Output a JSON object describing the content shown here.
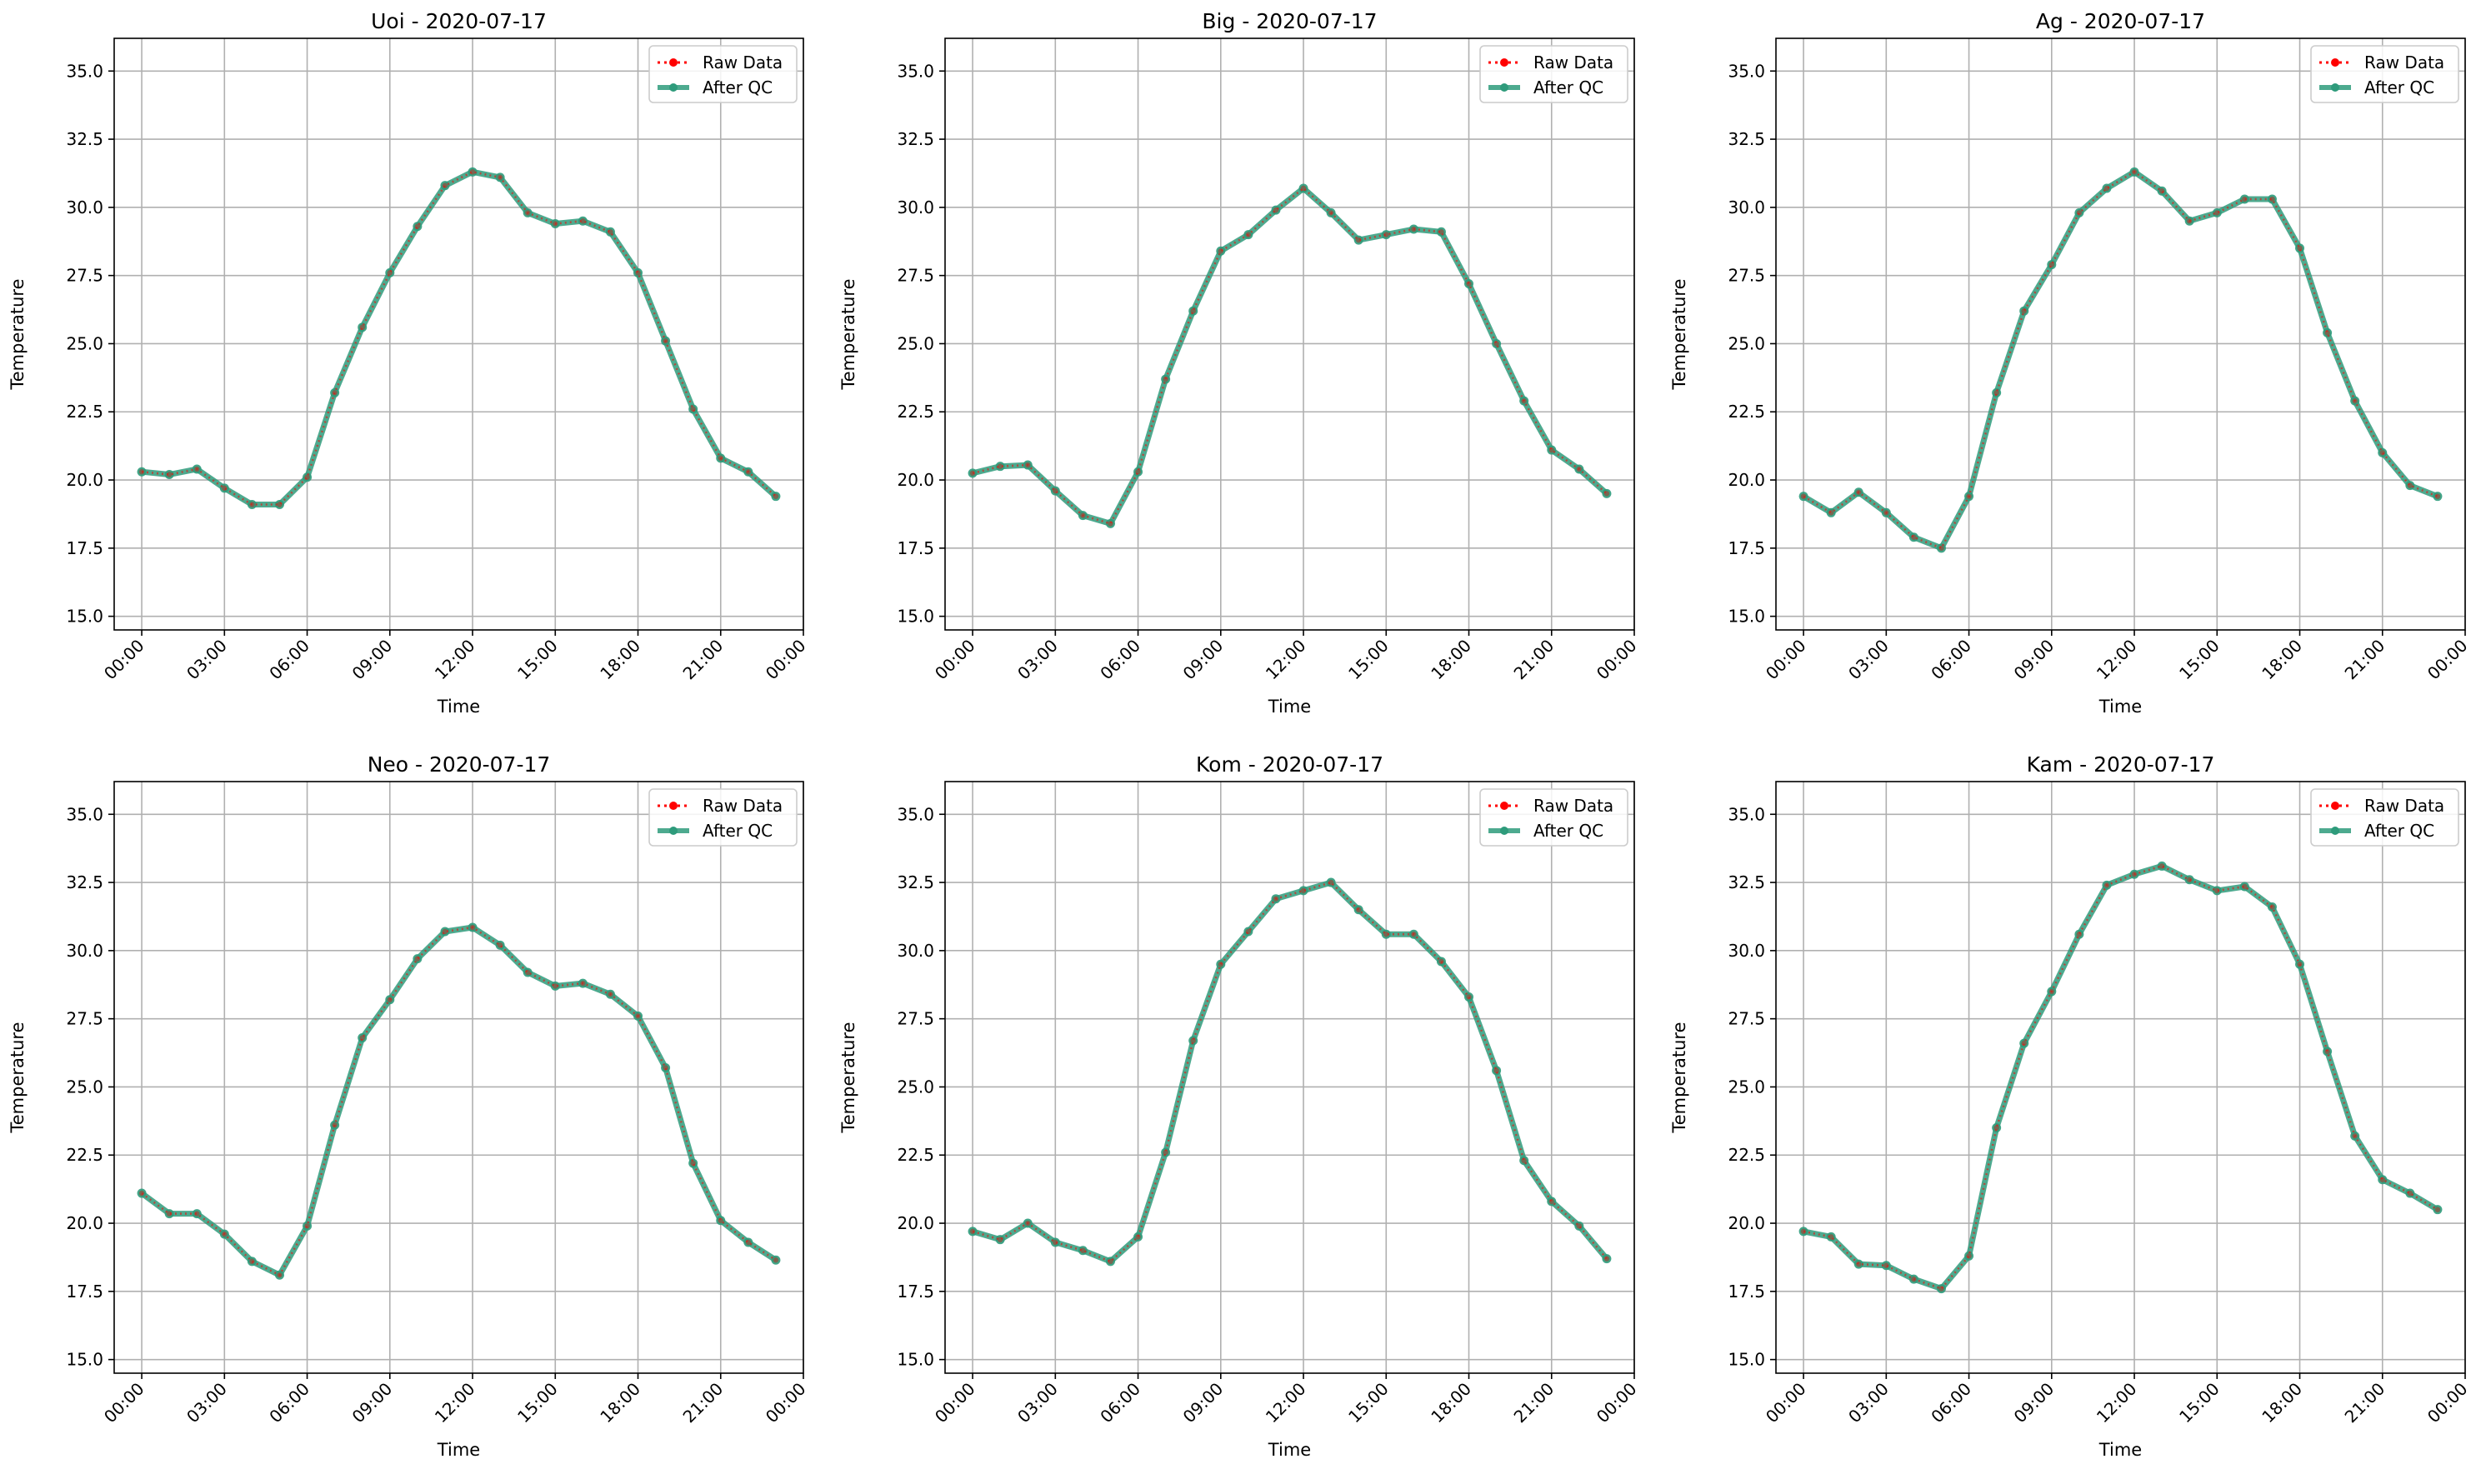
{
  "colors": {
    "raw": "#ff0000",
    "qc": "#2e9b7b",
    "grid": "#b0b0b0",
    "axis": "#000000"
  },
  "chart_data": [
    {
      "type": "line",
      "title": "Uoi - 2020-07-17",
      "xlabel": "Time",
      "ylabel": "Temperature",
      "xlim": [
        -1.0,
        24.0
      ],
      "ylim": [
        14.5,
        36.2
      ],
      "x_ticks": [
        0,
        3,
        6,
        9,
        12,
        15,
        18,
        21,
        24
      ],
      "x_tick_labels": [
        "00:00",
        "03:00",
        "06:00",
        "09:00",
        "12:00",
        "15:00",
        "18:00",
        "21:00",
        "00:00"
      ],
      "y_ticks": [
        15.0,
        17.5,
        20.0,
        22.5,
        25.0,
        27.5,
        30.0,
        32.5,
        35.0
      ],
      "y_tick_labels": [
        "15.0",
        "17.5",
        "20.0",
        "22.5",
        "25.0",
        "27.5",
        "30.0",
        "32.5",
        "35.0"
      ],
      "grid": true,
      "legend": {
        "position": "top-right",
        "entries": [
          "Raw Data",
          "After QC"
        ]
      },
      "x": [
        0,
        1,
        2,
        3,
        4,
        5,
        6,
        7,
        8,
        9,
        10,
        11,
        12,
        13,
        14,
        15,
        16,
        17,
        18,
        19,
        20,
        21,
        22,
        23
      ],
      "series": [
        {
          "name": "Raw Data",
          "style": "dotted",
          "values": [
            20.3,
            20.2,
            20.4,
            19.7,
            19.1,
            19.1,
            20.1,
            23.2,
            25.6,
            27.6,
            29.3,
            30.8,
            31.3,
            31.1,
            29.8,
            29.4,
            29.5,
            29.1,
            27.6,
            25.1,
            22.6,
            20.8,
            20.3,
            19.4
          ]
        },
        {
          "name": "After QC",
          "style": "solid",
          "values": [
            20.3,
            20.2,
            20.4,
            19.7,
            19.1,
            19.1,
            20.1,
            23.2,
            25.6,
            27.6,
            29.3,
            30.8,
            31.3,
            31.1,
            29.8,
            29.4,
            29.5,
            29.1,
            27.6,
            25.1,
            22.6,
            20.8,
            20.3,
            19.4
          ]
        }
      ]
    },
    {
      "type": "line",
      "title": "Big - 2020-07-17",
      "xlabel": "Time",
      "ylabel": "Temperature",
      "xlim": [
        -1.0,
        24.0
      ],
      "ylim": [
        14.5,
        36.2
      ],
      "x_ticks": [
        0,
        3,
        6,
        9,
        12,
        15,
        18,
        21,
        24
      ],
      "x_tick_labels": [
        "00:00",
        "03:00",
        "06:00",
        "09:00",
        "12:00",
        "15:00",
        "18:00",
        "21:00",
        "00:00"
      ],
      "y_ticks": [
        15.0,
        17.5,
        20.0,
        22.5,
        25.0,
        27.5,
        30.0,
        32.5,
        35.0
      ],
      "y_tick_labels": [
        "15.0",
        "17.5",
        "20.0",
        "22.5",
        "25.0",
        "27.5",
        "30.0",
        "32.5",
        "35.0"
      ],
      "grid": true,
      "legend": {
        "position": "top-right",
        "entries": [
          "Raw Data",
          "After QC"
        ]
      },
      "x": [
        0,
        1,
        2,
        3,
        4,
        5,
        6,
        7,
        8,
        9,
        10,
        11,
        12,
        13,
        14,
        15,
        16,
        17,
        18,
        19,
        20,
        21,
        22,
        23
      ],
      "series": [
        {
          "name": "Raw Data",
          "style": "dotted",
          "values": [
            20.25,
            20.5,
            20.55,
            19.6,
            18.7,
            18.4,
            20.3,
            23.7,
            26.2,
            28.4,
            29.0,
            29.9,
            30.7,
            29.8,
            28.8,
            29.0,
            29.2,
            29.1,
            27.2,
            25.0,
            22.9,
            21.1,
            20.4,
            19.5
          ]
        },
        {
          "name": "After QC",
          "style": "solid",
          "values": [
            20.25,
            20.5,
            20.55,
            19.6,
            18.7,
            18.4,
            20.3,
            23.7,
            26.2,
            28.4,
            29.0,
            29.9,
            30.7,
            29.8,
            28.8,
            29.0,
            29.2,
            29.1,
            27.2,
            25.0,
            22.9,
            21.1,
            20.4,
            19.5
          ]
        }
      ]
    },
    {
      "type": "line",
      "title": "Ag - 2020-07-17",
      "xlabel": "Time",
      "ylabel": "Temperature",
      "xlim": [
        -1.0,
        24.0
      ],
      "ylim": [
        14.5,
        36.2
      ],
      "x_ticks": [
        0,
        3,
        6,
        9,
        12,
        15,
        18,
        21,
        24
      ],
      "x_tick_labels": [
        "00:00",
        "03:00",
        "06:00",
        "09:00",
        "12:00",
        "15:00",
        "18:00",
        "21:00",
        "00:00"
      ],
      "y_ticks": [
        15.0,
        17.5,
        20.0,
        22.5,
        25.0,
        27.5,
        30.0,
        32.5,
        35.0
      ],
      "y_tick_labels": [
        "15.0",
        "17.5",
        "20.0",
        "22.5",
        "25.0",
        "27.5",
        "30.0",
        "32.5",
        "35.0"
      ],
      "grid": true,
      "legend": {
        "position": "top-right",
        "entries": [
          "Raw Data",
          "After QC"
        ]
      },
      "x": [
        0,
        1,
        2,
        3,
        4,
        5,
        6,
        7,
        8,
        9,
        10,
        11,
        12,
        13,
        14,
        15,
        16,
        17,
        18,
        19,
        20,
        21,
        22,
        23
      ],
      "series": [
        {
          "name": "Raw Data",
          "style": "dotted",
          "values": [
            19.4,
            18.8,
            19.55,
            18.8,
            17.9,
            17.5,
            19.4,
            23.2,
            26.2,
            27.9,
            29.8,
            30.7,
            31.3,
            30.6,
            29.5,
            29.8,
            30.3,
            30.3,
            28.5,
            25.4,
            22.9,
            21.0,
            19.8,
            19.4
          ]
        },
        {
          "name": "After QC",
          "style": "solid",
          "values": [
            19.4,
            18.8,
            19.55,
            18.8,
            17.9,
            17.5,
            19.4,
            23.2,
            26.2,
            27.9,
            29.8,
            30.7,
            31.3,
            30.6,
            29.5,
            29.8,
            30.3,
            30.3,
            28.5,
            25.4,
            22.9,
            21.0,
            19.8,
            19.4
          ]
        }
      ]
    },
    {
      "type": "line",
      "title": "Neo - 2020-07-17",
      "xlabel": "Time",
      "ylabel": "Temperature",
      "xlim": [
        -1.0,
        24.0
      ],
      "ylim": [
        14.5,
        36.2
      ],
      "x_ticks": [
        0,
        3,
        6,
        9,
        12,
        15,
        18,
        21,
        24
      ],
      "x_tick_labels": [
        "00:00",
        "03:00",
        "06:00",
        "09:00",
        "12:00",
        "15:00",
        "18:00",
        "21:00",
        "00:00"
      ],
      "y_ticks": [
        15.0,
        17.5,
        20.0,
        22.5,
        25.0,
        27.5,
        30.0,
        32.5,
        35.0
      ],
      "y_tick_labels": [
        "15.0",
        "17.5",
        "20.0",
        "22.5",
        "25.0",
        "27.5",
        "30.0",
        "32.5",
        "35.0"
      ],
      "grid": true,
      "legend": {
        "position": "top-right",
        "entries": [
          "Raw Data",
          "After QC"
        ]
      },
      "x": [
        0,
        1,
        2,
        3,
        4,
        5,
        6,
        7,
        8,
        9,
        10,
        11,
        12,
        13,
        14,
        15,
        16,
        17,
        18,
        19,
        20,
        21,
        22,
        23
      ],
      "series": [
        {
          "name": "Raw Data",
          "style": "dotted",
          "values": [
            21.1,
            20.35,
            20.35,
            19.6,
            18.6,
            18.1,
            19.9,
            23.6,
            26.8,
            28.2,
            29.7,
            30.7,
            30.85,
            30.2,
            29.2,
            28.7,
            28.8,
            28.4,
            27.6,
            25.7,
            22.2,
            20.1,
            19.3,
            18.65
          ]
        },
        {
          "name": "After QC",
          "style": "solid",
          "values": [
            21.1,
            20.35,
            20.35,
            19.6,
            18.6,
            18.1,
            19.9,
            23.6,
            26.8,
            28.2,
            29.7,
            30.7,
            30.85,
            30.2,
            29.2,
            28.7,
            28.8,
            28.4,
            27.6,
            25.7,
            22.2,
            20.1,
            19.3,
            18.65
          ]
        }
      ]
    },
    {
      "type": "line",
      "title": "Kom - 2020-07-17",
      "xlabel": "Time",
      "ylabel": "Temperature",
      "xlim": [
        -1.0,
        24.0
      ],
      "ylim": [
        14.5,
        36.2
      ],
      "x_ticks": [
        0,
        3,
        6,
        9,
        12,
        15,
        18,
        21,
        24
      ],
      "x_tick_labels": [
        "00:00",
        "03:00",
        "06:00",
        "09:00",
        "12:00",
        "15:00",
        "18:00",
        "21:00",
        "00:00"
      ],
      "y_ticks": [
        15.0,
        17.5,
        20.0,
        22.5,
        25.0,
        27.5,
        30.0,
        32.5,
        35.0
      ],
      "y_tick_labels": [
        "15.0",
        "17.5",
        "20.0",
        "22.5",
        "25.0",
        "27.5",
        "30.0",
        "32.5",
        "35.0"
      ],
      "grid": true,
      "legend": {
        "position": "top-right",
        "entries": [
          "Raw Data",
          "After QC"
        ]
      },
      "x": [
        0,
        1,
        2,
        3,
        4,
        5,
        6,
        7,
        8,
        9,
        10,
        11,
        12,
        13,
        14,
        15,
        16,
        17,
        18,
        19,
        20,
        21,
        22,
        23
      ],
      "series": [
        {
          "name": "Raw Data",
          "style": "dotted",
          "values": [
            19.7,
            19.4,
            20.0,
            19.3,
            19.0,
            18.6,
            19.5,
            22.6,
            26.7,
            29.5,
            30.7,
            31.9,
            32.2,
            32.5,
            31.5,
            30.6,
            30.6,
            29.6,
            28.3,
            25.6,
            22.3,
            20.8,
            19.9,
            18.7
          ]
        },
        {
          "name": "After QC",
          "style": "solid",
          "values": [
            19.7,
            19.4,
            20.0,
            19.3,
            19.0,
            18.6,
            19.5,
            22.6,
            26.7,
            29.5,
            30.7,
            31.9,
            32.2,
            32.5,
            31.5,
            30.6,
            30.6,
            29.6,
            28.3,
            25.6,
            22.3,
            20.8,
            19.9,
            18.7
          ]
        }
      ]
    },
    {
      "type": "line",
      "title": "Kam - 2020-07-17",
      "xlabel": "Time",
      "ylabel": "Temperature",
      "xlim": [
        -1.0,
        24.0
      ],
      "ylim": [
        14.5,
        36.2
      ],
      "x_ticks": [
        0,
        3,
        6,
        9,
        12,
        15,
        18,
        21,
        24
      ],
      "x_tick_labels": [
        "00:00",
        "03:00",
        "06:00",
        "09:00",
        "12:00",
        "15:00",
        "18:00",
        "21:00",
        "00:00"
      ],
      "y_ticks": [
        15.0,
        17.5,
        20.0,
        22.5,
        25.0,
        27.5,
        30.0,
        32.5,
        35.0
      ],
      "y_tick_labels": [
        "15.0",
        "17.5",
        "20.0",
        "22.5",
        "25.0",
        "27.5",
        "30.0",
        "32.5",
        "35.0"
      ],
      "grid": true,
      "legend": {
        "position": "top-right",
        "entries": [
          "Raw Data",
          "After QC"
        ]
      },
      "x": [
        0,
        1,
        2,
        3,
        4,
        5,
        6,
        7,
        8,
        9,
        10,
        11,
        12,
        13,
        14,
        15,
        16,
        17,
        18,
        19,
        20,
        21,
        22,
        23
      ],
      "series": [
        {
          "name": "Raw Data",
          "style": "dotted",
          "values": [
            19.7,
            19.5,
            18.5,
            18.45,
            17.95,
            17.6,
            18.8,
            23.5,
            26.6,
            28.5,
            30.6,
            32.4,
            32.8,
            33.1,
            32.6,
            32.2,
            32.35,
            31.6,
            29.5,
            26.3,
            23.2,
            21.6,
            21.1,
            20.5
          ]
        },
        {
          "name": "After QC",
          "style": "solid",
          "values": [
            19.7,
            19.5,
            18.5,
            18.45,
            17.95,
            17.6,
            18.8,
            23.5,
            26.6,
            28.5,
            30.6,
            32.4,
            32.8,
            33.1,
            32.6,
            32.2,
            32.35,
            31.6,
            29.5,
            26.3,
            23.2,
            21.6,
            21.1,
            20.5
          ]
        }
      ]
    }
  ]
}
